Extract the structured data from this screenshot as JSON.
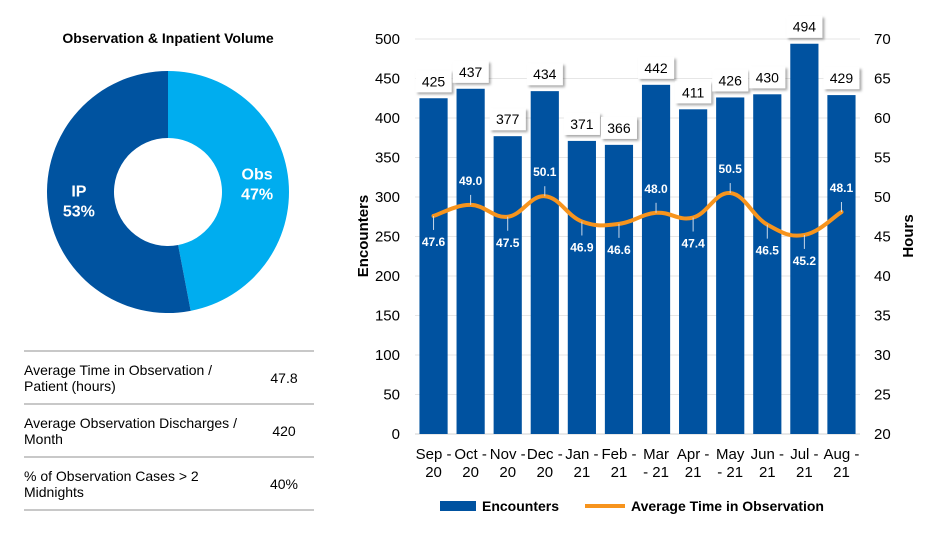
{
  "donut": {
    "title": "Observation & Inpatient Volume",
    "slices": [
      {
        "name": "Obs",
        "label": "Obs",
        "percent": 47,
        "pct_text": "47%",
        "color": "#00adef"
      },
      {
        "name": "IP",
        "label": "IP",
        "percent": 53,
        "pct_text": "53%",
        "color": "#0053a0"
      }
    ]
  },
  "stats": [
    {
      "label": "Average Time in Observation / Patient (hours)",
      "value": "47.8"
    },
    {
      "label": "Average Observation Discharges / Month",
      "value": "420"
    },
    {
      "label": "% of Observation Cases > 2 Midnights",
      "value": "40%"
    }
  ],
  "chart_data": {
    "type": "bar",
    "title": "",
    "categories": [
      "Sep - 20",
      "Oct - 20",
      "Nov - 20",
      "Dec - 20",
      "Jan - 21",
      "Feb - 21",
      "Mar - 21",
      "Apr - 21",
      "May - 21",
      "Jun - 21",
      "Jul - 21",
      "Aug - 21"
    ],
    "category_lines": [
      [
        "Sep -",
        "20"
      ],
      [
        "Oct -",
        "20"
      ],
      [
        "Nov -",
        "20"
      ],
      [
        "Dec -",
        "20"
      ],
      [
        "Jan -",
        "21"
      ],
      [
        "Feb -",
        "21"
      ],
      [
        "Mar",
        "- 21"
      ],
      [
        "Apr -",
        "21"
      ],
      [
        "May",
        "- 21"
      ],
      [
        "Jun -",
        "21"
      ],
      [
        "Jul -",
        "21"
      ],
      [
        "Aug -",
        "21"
      ]
    ],
    "series": [
      {
        "name": "Encounters",
        "type": "bar",
        "axis": "left",
        "color": "#0052a0",
        "values": [
          425,
          437,
          377,
          434,
          371,
          366,
          442,
          411,
          426,
          430,
          494,
          429
        ]
      },
      {
        "name": "Average Time in Observation",
        "type": "line",
        "axis": "right",
        "color": "#f7941d",
        "values": [
          47.6,
          49.0,
          47.5,
          50.1,
          46.9,
          46.6,
          48.0,
          47.4,
          50.5,
          46.5,
          45.2,
          48.1
        ]
      }
    ],
    "ylabel": "Encounters",
    "y2label": "Hours",
    "ylim": [
      0,
      500
    ],
    "y2lim": [
      20,
      70
    ],
    "yticks": [
      0,
      50,
      100,
      150,
      200,
      250,
      300,
      350,
      400,
      450,
      500
    ],
    "y2ticks": [
      20,
      25,
      30,
      35,
      40,
      45,
      50,
      55,
      60,
      65,
      70
    ],
    "line_label_positions": [
      "below",
      "above",
      "below",
      "above",
      "below",
      "below",
      "above",
      "below",
      "above",
      "below",
      "below",
      "above"
    ],
    "grid": true,
    "legend": "bottom"
  }
}
